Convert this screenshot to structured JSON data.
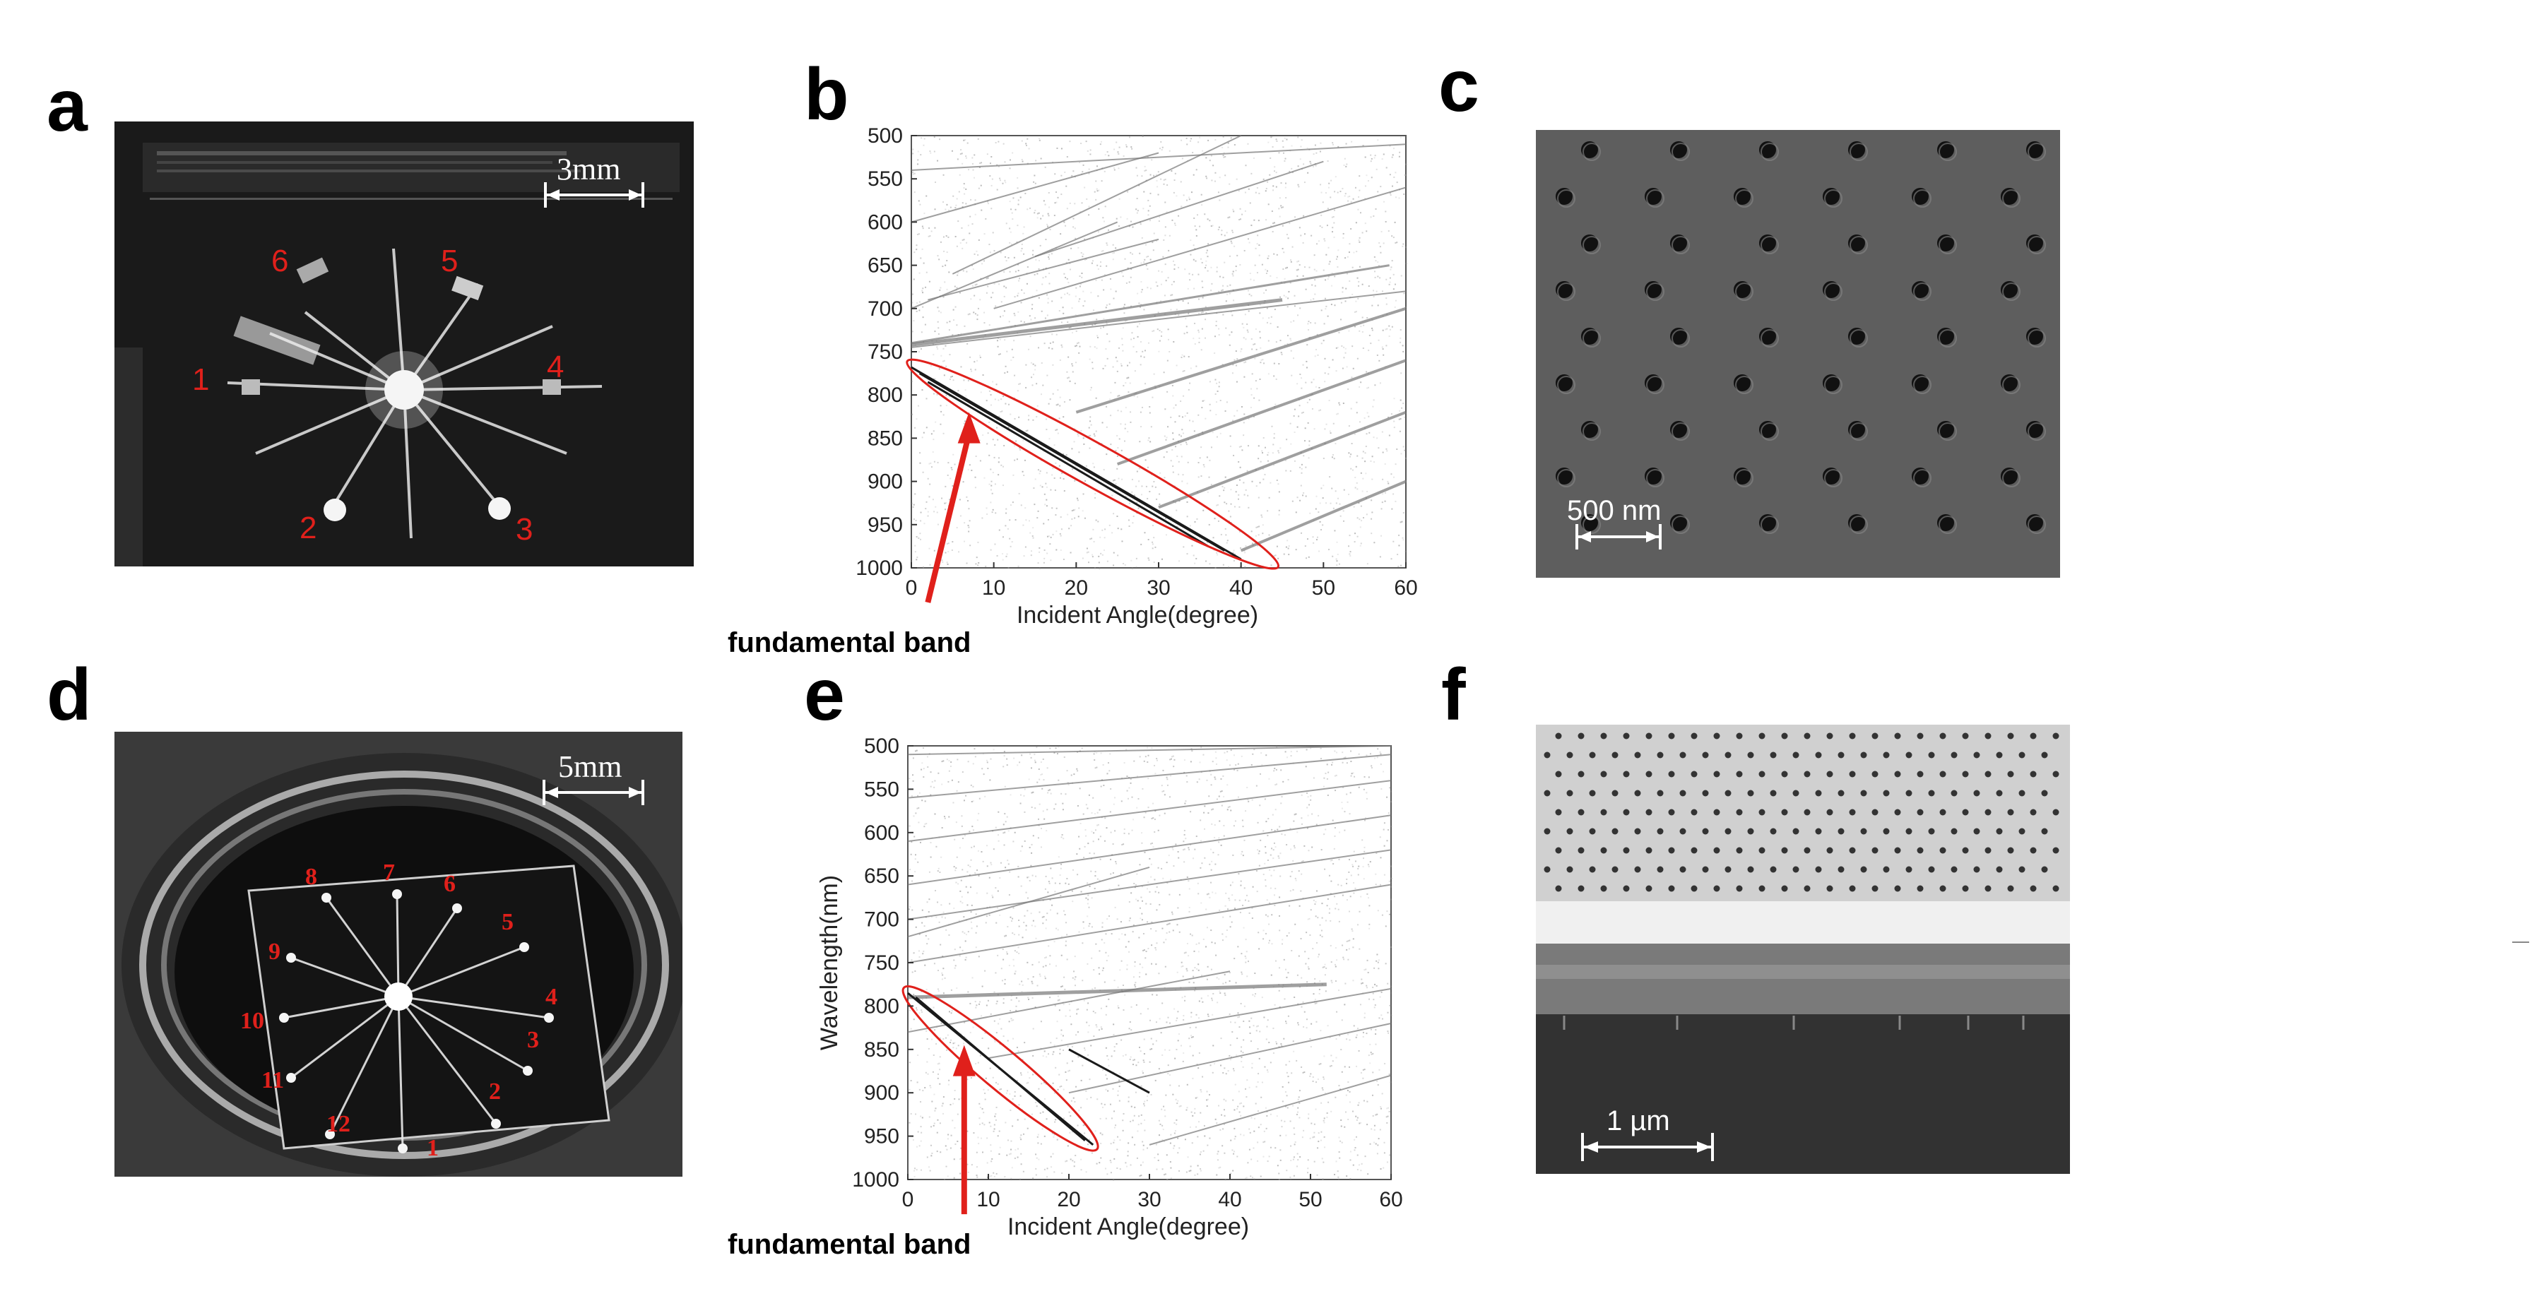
{
  "panels": {
    "a": {
      "letter": "a",
      "scale_bar": "3mm",
      "region_labels": [
        "1",
        "2",
        "3",
        "4",
        "5",
        "6"
      ]
    },
    "b": {
      "letter": "b",
      "annotation": "fundamental band"
    },
    "c": {
      "letter": "c",
      "scale_bar": "500 nm"
    },
    "d": {
      "letter": "d",
      "scale_bar": "5mm",
      "region_labels": [
        "1",
        "2",
        "3",
        "4",
        "5",
        "6",
        "7",
        "8",
        "9",
        "10",
        "11",
        "12"
      ]
    },
    "e": {
      "letter": "e",
      "annotation": "fundamental band"
    },
    "f": {
      "letter": "f",
      "scale_bar": "1 µm"
    }
  },
  "chart_data": [
    {
      "type": "heatmap",
      "panel": "b",
      "xlabel": "Incident Angle(degree)",
      "ylabel": "",
      "xlim": [
        0,
        60
      ],
      "ylim": [
        500,
        1000
      ],
      "x_ticks": [
        0,
        10,
        20,
        30,
        40,
        50,
        60
      ],
      "y_ticks": [
        500,
        550,
        600,
        650,
        700,
        750,
        800,
        850,
        900,
        950,
        1000
      ],
      "y_inverted": true,
      "colors": {
        "background": "#ffffff",
        "bands": "#1a1a1a",
        "annotation": "#e0201b"
      }
    },
    {
      "type": "heatmap",
      "panel": "e",
      "xlabel": "Incident Angle(degree)",
      "ylabel": "Wavelength(nm)",
      "xlim": [
        0,
        60
      ],
      "ylim": [
        500,
        1000
      ],
      "x_ticks": [
        0,
        10,
        20,
        30,
        40,
        50,
        60
      ],
      "y_ticks": [
        500,
        550,
        600,
        650,
        700,
        750,
        800,
        850,
        900,
        950,
        1000
      ],
      "y_inverted": true,
      "colors": {
        "background": "#ffffff",
        "bands": "#1a1a1a",
        "annotation": "#e0201b"
      }
    }
  ]
}
